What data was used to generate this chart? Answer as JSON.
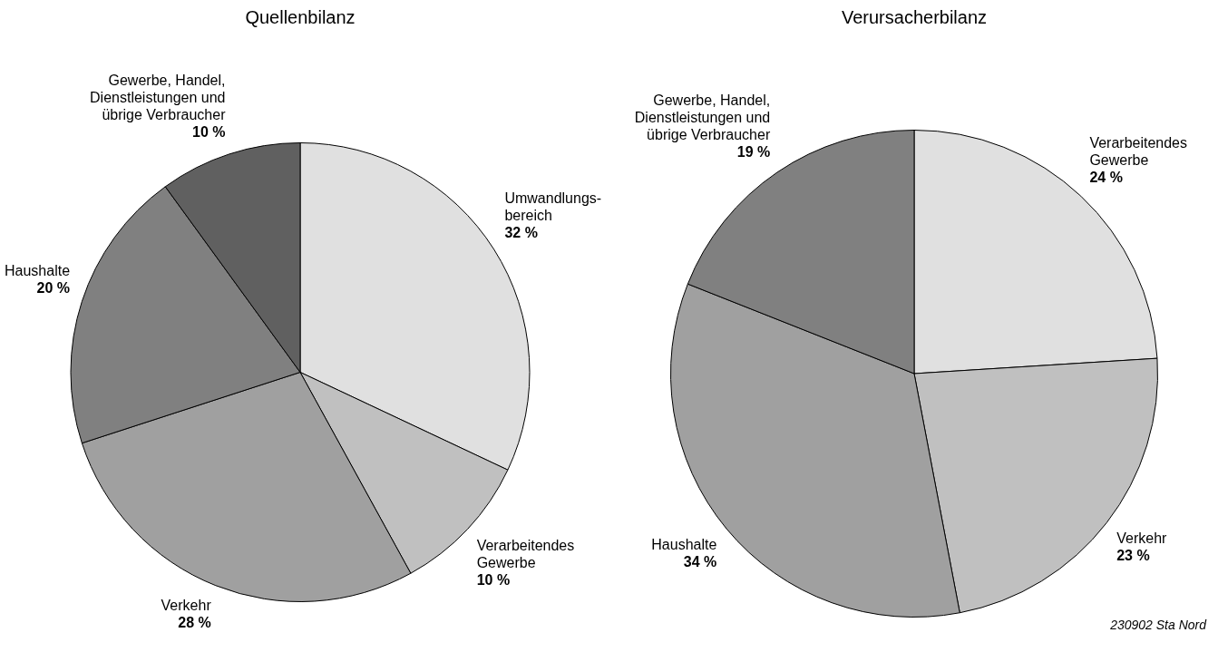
{
  "chart_data": [
    {
      "type": "pie",
      "title": "Quellenbilanz",
      "categories": [
        "Umwandlungs-\nbereich",
        "Verarbeitendes\nGewerbe",
        "Verkehr",
        "Haushalte",
        "Gewerbe, Handel,\nDienstleistungen und\nübrige Verbraucher"
      ],
      "values": [
        32,
        10,
        28,
        20,
        10
      ],
      "colors": [
        "#e0e0e0",
        "#c0c0c0",
        "#a0a0a0",
        "#808080",
        "#606060"
      ],
      "value_labels": [
        "32 %",
        "10 %",
        "28 %",
        "20 %",
        "10 %"
      ],
      "legend": false
    },
    {
      "type": "pie",
      "title": "Verursacherbilanz",
      "categories": [
        "Verarbeitendes\nGewerbe",
        "Verkehr",
        "Haushalte",
        "Gewerbe, Handel,\nDienstleistungen und\nübrige Verbraucher"
      ],
      "values": [
        24,
        23,
        34,
        19
      ],
      "colors": [
        "#e0e0e0",
        "#c0c0c0",
        "#a0a0a0",
        "#808080"
      ],
      "value_labels": [
        "24 %",
        "23 %",
        "34 %",
        "19 %"
      ],
      "legend": false,
      "annotations": [
        "230902 Sta Nord"
      ]
    }
  ]
}
